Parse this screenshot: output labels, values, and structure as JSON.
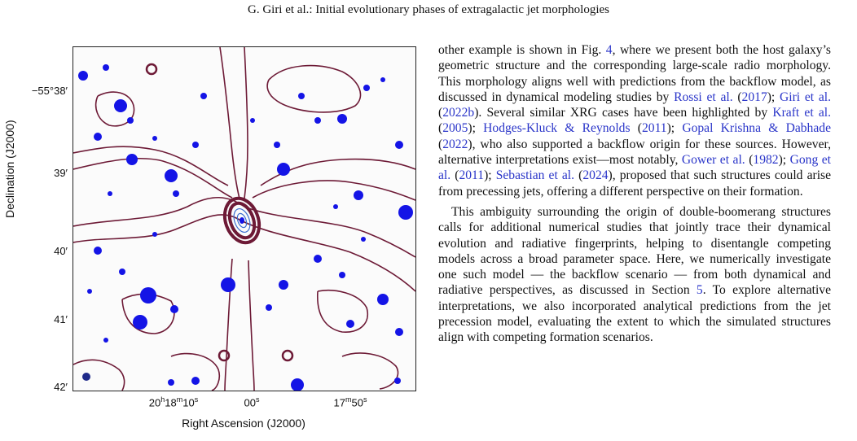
{
  "header": "G. Giri et al.: Initial evolutionary phases of extragalactic jet morphologies",
  "figure": {
    "ylabel": "Declination (J2000)",
    "xlabel": "Right Ascension (J2000)",
    "yticks": [
      "−55°38′",
      "39′",
      "40′",
      "41′",
      "42′"
    ],
    "xticks": [
      {
        "main": "20",
        "sup1": "h",
        "mid": "18",
        "sup2": "m",
        "end": "10",
        "sup3": "s"
      },
      {
        "main": "00",
        "sup3": "s"
      },
      {
        "main": "17",
        "sup2": "m",
        "end": "50",
        "sup3": "s"
      }
    ],
    "colors": {
      "contour": "#6d1a36",
      "sources": "#1414e6",
      "frame": "#222222"
    }
  },
  "paragraph1": [
    {
      "t": "other example is shown in Fig. "
    },
    {
      "t": "4",
      "c": true
    },
    {
      "t": ", where we present both the host galaxy’s geometric structure and the corresponding large-scale radio morphology. This morphology aligns well with predictions from the backflow model, as discussed in dynamical modeling studies by "
    },
    {
      "t": "Rossi et al.",
      "c": true
    },
    {
      "t": " ("
    },
    {
      "t": "2017",
      "c": true
    },
    {
      "t": "); "
    },
    {
      "t": "Giri et al.",
      "c": true
    },
    {
      "t": " ("
    },
    {
      "t": "2022b",
      "c": true
    },
    {
      "t": "). Several similar XRG cases have been highlighted by "
    },
    {
      "t": "Kraft et al.",
      "c": true
    },
    {
      "t": " ("
    },
    {
      "t": "2005",
      "c": true
    },
    {
      "t": "); "
    },
    {
      "t": "Hodges-Kluck & Reynolds",
      "c": true
    },
    {
      "t": " ("
    },
    {
      "t": "2011",
      "c": true
    },
    {
      "t": "); "
    },
    {
      "t": "Gopal Krishna & Dabhade",
      "c": true
    },
    {
      "t": " ("
    },
    {
      "t": "2022",
      "c": true
    },
    {
      "t": "), who also supported a backflow origin for these sources. However, alternative interpretations exist—most notably, "
    },
    {
      "t": "Gower et al.",
      "c": true
    },
    {
      "t": " ("
    },
    {
      "t": "1982",
      "c": true
    },
    {
      "t": "); "
    },
    {
      "t": "Gong et al.",
      "c": true
    },
    {
      "t": " ("
    },
    {
      "t": "2011",
      "c": true
    },
    {
      "t": "); "
    },
    {
      "t": "Sebastian et al.",
      "c": true
    },
    {
      "t": " ("
    },
    {
      "t": "2024",
      "c": true
    },
    {
      "t": "), proposed that such structures could arise from precessing jets, offering a different perspective on their formation."
    }
  ],
  "paragraph2": [
    {
      "t": "This ambiguity surrounding the origin of double-boomerang structures calls for additional numerical studies that jointly trace their dynamical evolution and radiative fingerprints, helping to disentangle competing models across a broad parameter space. Here, we numerically investigate one such model — the backflow scenario — from both dynamical and radiative perspectives, as discussed in Section "
    },
    {
      "t": "5",
      "c": true
    },
    {
      "t": ". To explore alternative interpretations, we also incorporated analytical predictions from the jet precession model, evaluating the extent to which the simulated structures align with competing formation scenarios."
    }
  ]
}
